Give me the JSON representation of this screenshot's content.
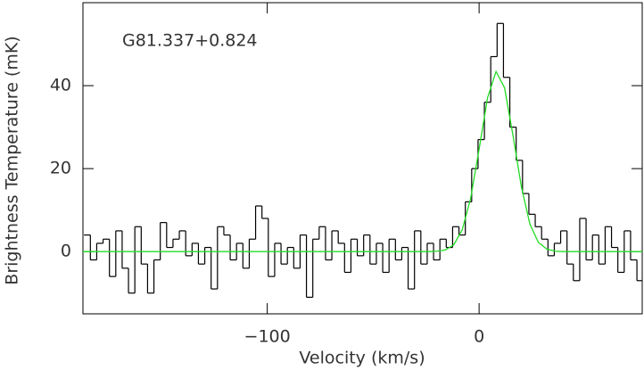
{
  "chart_data": {
    "type": "step",
    "annotation": "G81.337+0.824",
    "x_label": "Velocity (km/s)",
    "y_label": "Brightness Temperature (mK)",
    "xlim": [
      -187,
      77
    ],
    "ylim": [
      -15,
      60
    ],
    "xticks": [
      {
        "value": -100,
        "label": "−100"
      },
      0
    ],
    "yticks": [
      0,
      20,
      40
    ],
    "channel_width": 3,
    "x": [
      -185,
      -182,
      -179,
      -176,
      -173,
      -170,
      -167,
      -164,
      -161,
      -158,
      -155,
      -152,
      -149,
      -146,
      -143,
      -140,
      -137,
      -134,
      -131,
      -128,
      -125,
      -122,
      -119,
      -116,
      -113,
      -110,
      -107,
      -104,
      -101,
      -98,
      -95,
      -92,
      -89,
      -86,
      -83,
      -80,
      -77,
      -74,
      -71,
      -68,
      -65,
      -62,
      -59,
      -56,
      -53,
      -50,
      -47,
      -44,
      -41,
      -38,
      -35,
      -32,
      -29,
      -26,
      -23,
      -20,
      -17,
      -14,
      -11,
      -8,
      -5,
      -2,
      1,
      4,
      7,
      10,
      13,
      16,
      19,
      22,
      25,
      28,
      31,
      34,
      37,
      40,
      43,
      46,
      49,
      52,
      55,
      58,
      61,
      64,
      67,
      70,
      73,
      76
    ],
    "series": [
      {
        "color": "#000000",
        "values": [
          4,
          -2,
          2,
          3,
          -6,
          5,
          -4,
          -10,
          6,
          -3,
          -10,
          -2,
          7,
          1,
          3,
          5,
          -1,
          2,
          -3,
          1,
          -9,
          6,
          4,
          -2,
          2,
          -4,
          3,
          11,
          8,
          -6,
          2,
          -3,
          1,
          -4,
          4,
          -11,
          3,
          6,
          -2,
          5,
          2,
          -5,
          3,
          -1,
          4,
          -3,
          2,
          -5,
          3,
          -2,
          1,
          -9,
          5,
          -3,
          2,
          -2,
          3,
          1,
          6,
          4,
          12,
          20,
          27,
          36,
          47,
          55,
          42,
          30,
          22,
          14,
          9,
          6,
          3,
          -1,
          2,
          5,
          -3,
          -7,
          8,
          -2,
          4,
          -3,
          6,
          1,
          -5,
          5,
          -2,
          -7
        ]
      }
    ],
    "fit": {
      "color": "#22dd22",
      "x": [
        -187,
        -24,
        -20,
        -16,
        -12,
        -8,
        -4,
        0,
        4,
        8,
        12,
        16,
        20,
        24,
        28,
        32,
        36,
        40,
        77
      ],
      "values": [
        0,
        0,
        0.1,
        0.4,
        1.6,
        5.2,
        12.8,
        24.7,
        37.1,
        43.4,
        39.5,
        28.0,
        15.5,
        6.6,
        2.2,
        0.6,
        0.1,
        0,
        0
      ]
    }
  }
}
